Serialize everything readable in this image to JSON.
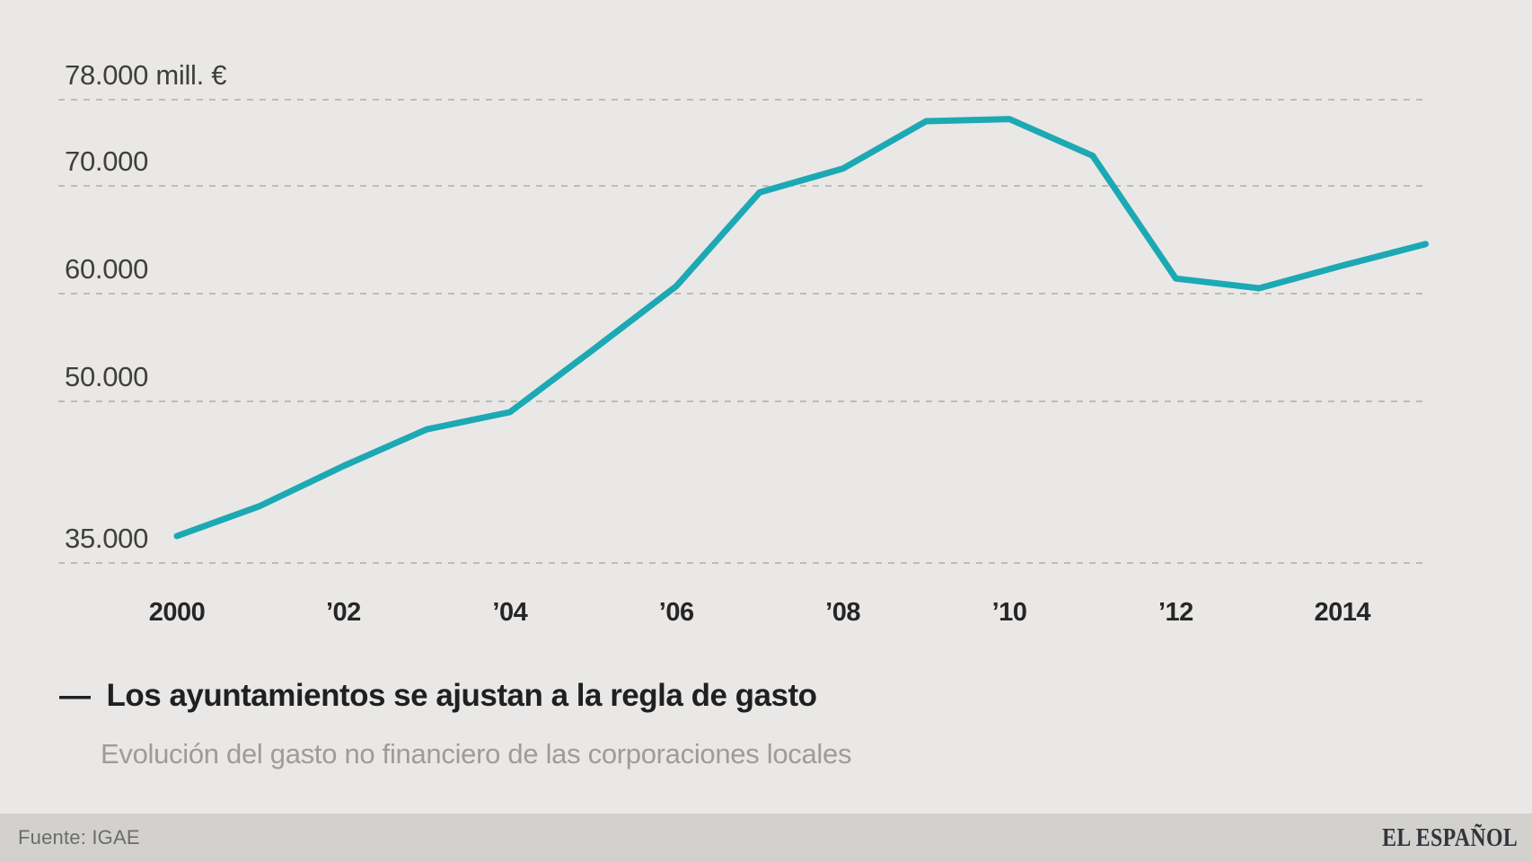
{
  "chart_data": {
    "type": "line",
    "x": [
      2000,
      2001,
      2002,
      2003,
      2004,
      2005,
      2006,
      2007,
      2008,
      2009,
      2010,
      2011,
      2012,
      2013,
      2014,
      2015
    ],
    "series": [
      {
        "name": "Gasto no financiero de las corporaciones locales (mill. €)",
        "values": [
          37500,
          40300,
          44000,
          47400,
          49000,
          54800,
          60700,
          69400,
          71600,
          76000,
          76200,
          72800,
          61400,
          60500,
          62600,
          64600
        ]
      }
    ],
    "title": "Los ayuntamientos se ajustan a la regla de gasto",
    "subtitle": "Evolución del gasto no financiero de las corporaciones locales",
    "xlabel": "",
    "ylabel": "mill. €",
    "ylim": [
      35000,
      78000
    ],
    "grid": "horizontal-dashed",
    "legend_position": "below",
    "line_color": "#1ca9b4",
    "y_ticks": [
      {
        "value": 78000,
        "label": "78.000 mill. €"
      },
      {
        "value": 70000,
        "label": "70.000"
      },
      {
        "value": 60000,
        "label": "60.000"
      },
      {
        "value": 50000,
        "label": "50.000"
      },
      {
        "value": 35000,
        "label": "35.000"
      }
    ],
    "x_ticks": [
      {
        "year": 2000,
        "label": "2000"
      },
      {
        "year": 2002,
        "label": "’02"
      },
      {
        "year": 2004,
        "label": "’04"
      },
      {
        "year": 2006,
        "label": "’06"
      },
      {
        "year": 2008,
        "label": "’08"
      },
      {
        "year": 2010,
        "label": "’10"
      },
      {
        "year": 2012,
        "label": "’12"
      },
      {
        "year": 2014,
        "label": "2014"
      }
    ]
  },
  "legend": {
    "marker": "—",
    "title": "Los ayuntamientos se ajustan a la regla de gasto"
  },
  "subtitle": "Evolución del gasto no financiero de las corporaciones locales",
  "footer": {
    "source": "Fuente: IGAE",
    "brand": "EL ESPAÑOL"
  },
  "colors": {
    "background": "#e9e8e6",
    "footer_background": "#d2d1ce",
    "line": "#1ca9b4",
    "gridline": "#bcbcba",
    "title_text": "#1e2022",
    "subtitle_text": "#9d9c9a",
    "axis_text": "#3f3f3d"
  }
}
